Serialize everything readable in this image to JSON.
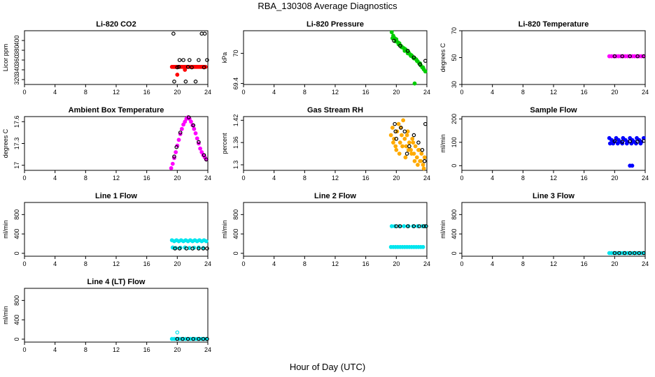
{
  "figure": {
    "title": "RBA_130308  Average Diagnostics",
    "xlabel": "Hour of Day (UTC)"
  },
  "chart_data": [
    {
      "type": "scatter",
      "title": "Li-820 CO2",
      "ylabel": "Licor ppm",
      "xlim": [
        0,
        24
      ],
      "ylim": [
        310,
        420
      ],
      "xticks": [
        "0",
        "4",
        "8",
        "12",
        "16",
        "20",
        "24"
      ],
      "yticks": [
        320,
        340,
        360,
        380,
        400
      ],
      "series": [
        {
          "color": "#ff0000",
          "marker": "dot",
          "x": [
            19.3,
            19.5,
            19.7,
            19.9,
            20.1,
            20.3,
            20.5,
            20.7,
            20.9,
            21.1,
            21.3,
            21.5,
            21.7,
            21.9,
            22.1,
            22.3,
            22.5,
            22.7,
            22.9,
            23.1,
            23.3,
            23.5,
            23.7,
            20.0,
            21.0
          ],
          "y": [
            346,
            346,
            346,
            346,
            346,
            346,
            346,
            346,
            346,
            346,
            346,
            346,
            346,
            346,
            346,
            346,
            346,
            346,
            346,
            346,
            346,
            346,
            346,
            330,
            340
          ]
        },
        {
          "color": "#000000",
          "marker": "circle",
          "x": [
            19.5,
            20.0,
            20.3,
            20.8,
            21.1,
            21.6,
            21.9,
            22.4,
            22.8,
            23.2,
            23.6,
            23.9,
            19.6,
            21.4,
            23.5,
            20.2
          ],
          "y": [
            414,
            345,
            360,
            360,
            316,
            360,
            345,
            316,
            360,
            414,
            414,
            360,
            316,
            346,
            345,
            346
          ]
        }
      ]
    },
    {
      "type": "scatter",
      "title": "Li-820 Pressure",
      "ylabel": "kPa",
      "xlim": [
        0,
        24
      ],
      "ylim": [
        69.38,
        70.45
      ],
      "xticks": [
        "0",
        "4",
        "8",
        "12",
        "16",
        "20",
        "24"
      ],
      "yticks": [
        69.4,
        70.0
      ],
      "series": [
        {
          "color": "#00cc00",
          "marker": "dot",
          "x": [
            19.4,
            19.6,
            19.8,
            20.0,
            20.2,
            20.4,
            20.6,
            20.8,
            21.0,
            21.2,
            21.4,
            21.6,
            21.8,
            22.0,
            22.2,
            22.4,
            22.6,
            22.8,
            23.0,
            23.2,
            23.4,
            23.6,
            23.8,
            19.5,
            19.9,
            20.3,
            20.7,
            21.1,
            21.5,
            21.9,
            22.3,
            22.7,
            23.1,
            23.5,
            22.4
          ],
          "y": [
            70.42,
            70.35,
            70.3,
            70.28,
            70.22,
            70.2,
            70.15,
            70.12,
            70.1,
            70.08,
            70.05,
            70.02,
            69.98,
            69.96,
            69.92,
            69.9,
            69.88,
            69.84,
            69.8,
            69.76,
            69.72,
            69.68,
            69.64,
            70.3,
            70.24,
            70.18,
            70.12,
            70.05,
            70.0,
            69.95,
            69.9,
            69.85,
            69.8,
            69.72,
            69.4
          ]
        },
        {
          "color": "#000000",
          "marker": "circle",
          "x": [
            19.7,
            20.5,
            21.5,
            22.3,
            23.1,
            23.8
          ],
          "y": [
            70.25,
            70.15,
            70.05,
            69.92,
            69.78,
            69.85
          ]
        }
      ]
    },
    {
      "type": "scatter",
      "title": "Li-820 Temperature",
      "ylabel": "degrees C",
      "xlim": [
        0,
        24
      ],
      "ylim": [
        30,
        70
      ],
      "xticks": [
        "0",
        "4",
        "8",
        "12",
        "16",
        "20",
        "24"
      ],
      "yticks": [
        30,
        50,
        70
      ],
      "series": [
        {
          "color": "#ff00ff",
          "marker": "dot",
          "x": [
            19.3,
            19.6,
            19.9,
            20.2,
            20.5,
            20.8,
            21.1,
            21.4,
            21.7,
            22.0,
            22.3,
            22.6,
            22.9,
            23.2,
            23.5,
            23.8
          ],
          "y": [
            51,
            51,
            51,
            51,
            51,
            51,
            51,
            51,
            51,
            51,
            51,
            51,
            51,
            51,
            51,
            51
          ]
        },
        {
          "color": "#000000",
          "marker": "circle",
          "x": [
            20.0,
            21.0,
            22.0,
            23.0,
            23.8
          ],
          "y": [
            51,
            51,
            51,
            51,
            51
          ]
        }
      ]
    },
    {
      "type": "scatter",
      "title": "Ambient Box Temperature",
      "ylabel": "degrees C",
      "xlim": [
        0,
        24
      ],
      "ylim": [
        16.93,
        17.67
      ],
      "xticks": [
        "0",
        "4",
        "8",
        "12",
        "16",
        "20",
        "24"
      ],
      "yticks": [
        17.0,
        17.3,
        17.6
      ],
      "series": [
        {
          "color": "#ff00ff",
          "marker": "dot",
          "x": [
            19.2,
            19.4,
            19.6,
            19.8,
            20.0,
            20.2,
            20.4,
            20.6,
            20.8,
            21.0,
            21.2,
            21.4,
            21.6,
            21.8,
            22.0,
            22.2,
            22.4,
            22.6,
            22.8,
            23.0,
            23.2,
            23.4,
            23.6,
            23.8
          ],
          "y": [
            16.96,
            17.02,
            17.1,
            17.18,
            17.27,
            17.35,
            17.43,
            17.5,
            17.56,
            17.6,
            17.64,
            17.66,
            17.64,
            17.6,
            17.55,
            17.5,
            17.44,
            17.37,
            17.3,
            17.23,
            17.18,
            17.14,
            17.11,
            17.08
          ]
        },
        {
          "color": "#000000",
          "marker": "circle",
          "x": [
            19.6,
            19.9,
            20.4,
            21.5,
            22.1,
            22.8,
            23.5,
            23.8
          ],
          "y": [
            17.12,
            17.25,
            17.45,
            17.66,
            17.55,
            17.32,
            17.14,
            17.08
          ]
        }
      ]
    },
    {
      "type": "scatter",
      "title": "Gas Stream RH",
      "ylabel": "percent",
      "xlim": [
        0,
        24
      ],
      "ylim": [
        1.285,
        1.43
      ],
      "xticks": [
        "0",
        "4",
        "8",
        "12",
        "16",
        "20",
        "24"
      ],
      "yticks": [
        1.3,
        1.36,
        1.42
      ],
      "series": [
        {
          "color": "#ffaa00",
          "marker": "dot",
          "x": [
            19.3,
            19.5,
            19.7,
            19.9,
            20.1,
            20.3,
            20.5,
            20.7,
            20.9,
            21.1,
            21.3,
            21.5,
            21.7,
            21.9,
            22.1,
            22.3,
            22.5,
            22.7,
            22.9,
            23.1,
            23.3,
            23.5,
            23.7,
            19.6,
            20.0,
            20.4,
            20.8,
            21.2,
            21.6,
            22.0,
            22.4,
            22.8,
            23.2,
            23.6,
            20.6,
            21.4,
            22.2,
            23.0
          ],
          "y": [
            1.38,
            1.4,
            1.37,
            1.35,
            1.39,
            1.41,
            1.36,
            1.38,
            1.42,
            1.37,
            1.35,
            1.39,
            1.36,
            1.34,
            1.37,
            1.33,
            1.35,
            1.32,
            1.34,
            1.31,
            1.33,
            1.3,
            1.32,
            1.36,
            1.34,
            1.33,
            1.35,
            1.32,
            1.34,
            1.33,
            1.31,
            1.3,
            1.31,
            1.29,
            1.4,
            1.38,
            1.36,
            1.34
          ]
        },
        {
          "color": "#000000",
          "marker": "circle",
          "x": [
            19.8,
            20.0,
            20.6,
            21.1,
            21.7,
            22.3,
            22.9,
            23.4,
            23.7,
            23.8,
            19.9,
            21.4
          ],
          "y": [
            1.41,
            1.37,
            1.4,
            1.39,
            1.35,
            1.38,
            1.36,
            1.34,
            1.31,
            1.41,
            1.39,
            1.33
          ]
        }
      ]
    },
    {
      "type": "scatter",
      "title": "Sample Flow",
      "ylabel": "ml/min",
      "xlim": [
        0,
        24
      ],
      "ylim": [
        -20,
        210
      ],
      "xticks": [
        "0",
        "4",
        "8",
        "12",
        "16",
        "20",
        "24"
      ],
      "yticks": [
        0,
        100,
        200
      ],
      "series": [
        {
          "color": "#0000ff",
          "marker": "dot",
          "x": [
            19.3,
            19.6,
            19.9,
            20.2,
            20.5,
            20.8,
            21.1,
            21.4,
            21.7,
            22.0,
            22.3,
            22.6,
            22.9,
            23.2,
            23.5,
            23.8,
            19.4,
            19.8,
            20.4,
            21.0,
            21.6,
            22.2,
            22.8,
            23.4,
            22.0,
            22.3
          ],
          "y": [
            118,
            110,
            102,
            118,
            110,
            102,
            118,
            110,
            102,
            118,
            110,
            102,
            118,
            110,
            102,
            118,
            95,
            95,
            95,
            95,
            95,
            95,
            95,
            95,
            0,
            0
          ]
        },
        {
          "color": "#000000",
          "marker": "circle",
          "x": [
            20.0,
            21.0,
            22.0,
            23.0,
            23.8
          ],
          "y": [
            105,
            102,
            104,
            103,
            106
          ]
        }
      ]
    },
    {
      "type": "scatter",
      "title": "Line 1 Flow",
      "ylabel": "ml/min",
      "xlim": [
        0,
        24
      ],
      "ylim": [
        -60,
        1050
      ],
      "xticks": [
        "0",
        "4",
        "8",
        "12",
        "16",
        "20",
        "24"
      ],
      "yticks": [
        0,
        400,
        800
      ],
      "series": [
        {
          "color": "#00e5ee",
          "marker": "dot",
          "x": [
            19.3,
            19.6,
            19.9,
            20.2,
            20.5,
            20.8,
            21.1,
            21.4,
            21.7,
            22.0,
            22.3,
            22.6,
            22.9,
            23.2,
            23.5,
            23.8,
            19.4,
            19.8,
            20.4,
            21.0,
            21.6,
            22.2,
            22.8,
            23.4
          ],
          "y": [
            270,
            250,
            270,
            250,
            270,
            250,
            270,
            250,
            270,
            250,
            270,
            250,
            270,
            250,
            270,
            250,
            120,
            110,
            115,
            120,
            110,
            115,
            120,
            110
          ]
        },
        {
          "color": "#000000",
          "marker": "circle",
          "x": [
            19.7,
            20.3,
            21.2,
            22.0,
            22.8,
            23.4,
            23.9
          ],
          "y": [
            100,
            100,
            100,
            100,
            100,
            100,
            100
          ]
        }
      ]
    },
    {
      "type": "scatter",
      "title": "Line 2 Flow",
      "ylabel": "ml/min",
      "xlim": [
        0,
        24
      ],
      "ylim": [
        -60,
        1050
      ],
      "xticks": [
        "0",
        "4",
        "8",
        "12",
        "16",
        "20",
        "24"
      ],
      "yticks": [
        0,
        400,
        800
      ],
      "series": [
        {
          "color": "#00e5ee",
          "marker": "dot",
          "x": [
            19.3,
            19.6,
            19.9,
            20.2,
            20.5,
            20.8,
            21.1,
            21.4,
            21.7,
            22.0,
            22.3,
            22.6,
            22.9,
            23.2,
            23.5,
            19.4,
            19.8,
            20.4,
            21.0,
            21.6,
            22.2,
            22.8,
            23.4,
            23.8
          ],
          "y": [
            130,
            130,
            130,
            130,
            130,
            130,
            130,
            130,
            130,
            130,
            130,
            130,
            130,
            130,
            130,
            560,
            560,
            560,
            560,
            560,
            560,
            560,
            560,
            560
          ]
        },
        {
          "color": "#000000",
          "marker": "circle",
          "x": [
            20.0,
            20.5,
            21.5,
            22.3,
            23.0,
            23.6,
            23.9
          ],
          "y": [
            560,
            560,
            560,
            560,
            560,
            560,
            560
          ]
        }
      ]
    },
    {
      "type": "scatter",
      "title": "Line 3 Flow",
      "ylabel": "ml/min",
      "xlim": [
        0,
        24
      ],
      "ylim": [
        -60,
        1050
      ],
      "xticks": [
        "0",
        "4",
        "8",
        "12",
        "16",
        "20",
        "24"
      ],
      "yticks": [
        0,
        400,
        800
      ],
      "series": [
        {
          "color": "#00e5ee",
          "marker": "dot",
          "x": [
            19.3,
            19.6,
            19.9,
            20.2,
            20.5,
            20.8,
            21.1,
            21.4,
            21.7,
            22.0,
            22.3,
            22.6,
            22.9,
            23.2,
            23.5,
            23.8
          ],
          "y": [
            5,
            5,
            5,
            5,
            5,
            5,
            5,
            5,
            5,
            5,
            5,
            5,
            5,
            5,
            5,
            5
          ]
        },
        {
          "color": "#000000",
          "marker": "circle",
          "x": [
            20.0,
            20.6,
            21.3,
            22.0,
            22.6,
            23.2,
            23.8
          ],
          "y": [
            5,
            5,
            5,
            5,
            5,
            5,
            5
          ]
        }
      ]
    },
    {
      "type": "scatter",
      "title": "Line 4 (LT) Flow",
      "ylabel": "ml/min",
      "xlim": [
        0,
        24
      ],
      "ylim": [
        -60,
        1050
      ],
      "xticks": [
        "0",
        "4",
        "8",
        "12",
        "16",
        "20",
        "24"
      ],
      "yticks": [
        0,
        400,
        800
      ],
      "series": [
        {
          "color": "#00e5ee",
          "marker": "dot",
          "x": [
            19.3,
            19.6,
            19.9,
            20.2,
            20.5,
            20.8,
            21.1,
            21.4,
            21.7,
            22.0,
            22.3,
            22.6,
            22.9,
            23.2,
            23.5,
            23.8
          ],
          "y": [
            5,
            5,
            5,
            5,
            5,
            5,
            5,
            5,
            5,
            5,
            5,
            5,
            5,
            5,
            5,
            5
          ]
        },
        {
          "color": "#00e5ee",
          "marker": "circle",
          "x": [
            20.0
          ],
          "y": [
            140
          ]
        },
        {
          "color": "#000000",
          "marker": "circle",
          "x": [
            20.0,
            20.7,
            21.4,
            22.1,
            22.8,
            23.4,
            23.9
          ],
          "y": [
            5,
            5,
            5,
            5,
            5,
            5,
            5
          ]
        }
      ]
    }
  ]
}
